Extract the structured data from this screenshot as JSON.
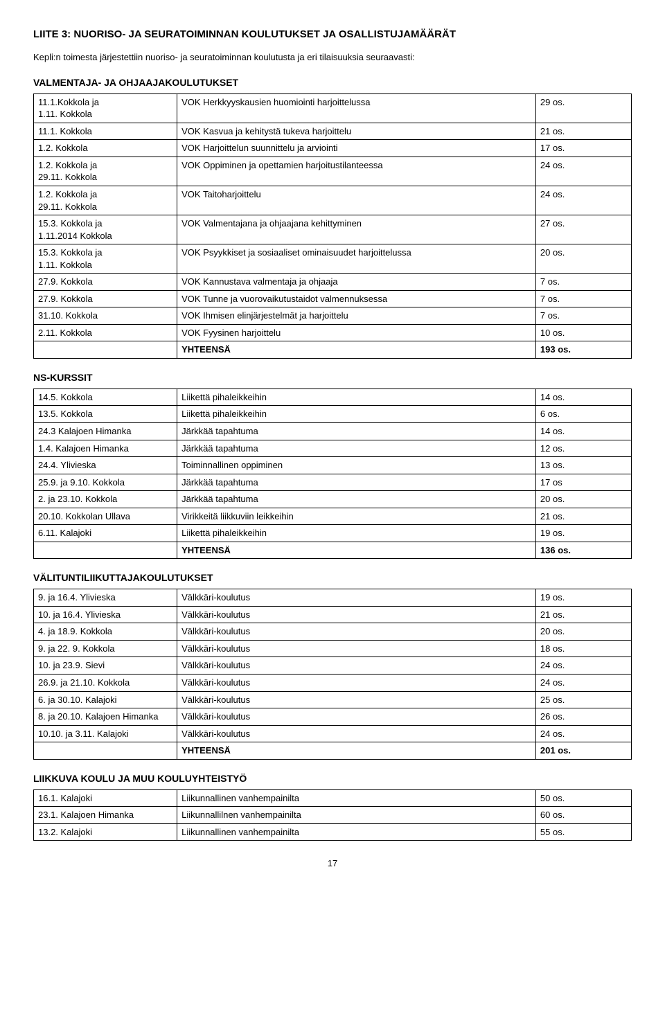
{
  "title": "LIITE 3: NUORISO- JA SEURATOIMINNAN KOULUTUKSET JA OSALLISTUJAMÄÄRÄT",
  "intro": "Kepli:n toimesta järjestettiin nuoriso- ja seuratoiminnan koulutusta ja eri tilaisuuksia seuraavasti:",
  "sections": [
    {
      "heading": "VALMENTAJA- JA OHJAAJAKOULUTUKSET",
      "rows": [
        {
          "a": "11.1.Kokkola ja\n1.11. Kokkola",
          "b": "VOK Herkkyyskausien huomiointi harjoittelussa",
          "c": "29 os."
        },
        {
          "a": "11.1. Kokkola",
          "b": "VOK Kasvua ja kehitystä tukeva harjoittelu",
          "c": "21 os."
        },
        {
          "a": "1.2. Kokkola",
          "b": "VOK Harjoittelun suunnittelu ja arviointi",
          "c": "17 os."
        },
        {
          "a": "1.2. Kokkola ja\n29.11. Kokkola",
          "b": "VOK Oppiminen ja opettamien harjoitustilanteessa",
          "c": "24 os."
        },
        {
          "a": "1.2. Kokkola ja\n29.11. Kokkola",
          "b": "VOK Taitoharjoittelu",
          "c": "24 os."
        },
        {
          "a": "15.3. Kokkola ja\n1.11.2014 Kokkola",
          "b": "VOK Valmentajana ja ohjaajana kehittyminen",
          "c": "27 os."
        },
        {
          "a": "15.3. Kokkola ja\n1.11. Kokkola",
          "b": "VOK Psyykkiset ja sosiaaliset ominaisuudet harjoittelussa",
          "c": "20 os."
        },
        {
          "a": "27.9. Kokkola",
          "b": "VOK Kannustava valmentaja ja ohjaaja",
          "c": "7 os."
        },
        {
          "a": "27.9. Kokkola",
          "b": "VOK Tunne ja vuorovaikutustaidot valmennuksessa",
          "c": "7 os."
        },
        {
          "a": "31.10. Kokkola",
          "b": "VOK Ihmisen elinjärjestelmät ja harjoittelu",
          "c": "7 os."
        },
        {
          "a": "2.11. Kokkola",
          "b": "VOK Fyysinen harjoittelu",
          "c": "10 os."
        }
      ],
      "total": {
        "label": "YHTEENSÄ",
        "value": "193 os."
      }
    },
    {
      "heading": "NS-KURSSIT",
      "rows": [
        {
          "a": "14.5. Kokkola",
          "b": "Liikettä pihaleikkeihin",
          "c": "14 os."
        },
        {
          "a": "13.5. Kokkola",
          "b": "Liikettä pihaleikkeihin",
          "c": "6 os."
        },
        {
          "a": "24.3 Kalajoen Himanka",
          "b": "Järkkää tapahtuma",
          "c": "14 os."
        },
        {
          "a": "1.4. Kalajoen Himanka",
          "b": "Järkkää tapahtuma",
          "c": "12 os."
        },
        {
          "a": "24.4. Ylivieska",
          "b": "Toiminnallinen oppiminen",
          "c": "13 os."
        },
        {
          "a": "25.9. ja 9.10. Kokkola",
          "b": "Järkkää tapahtuma",
          "c": "17 os"
        },
        {
          "a": "2. ja 23.10. Kokkola",
          "b": "Järkkää tapahtuma",
          "c": "20 os."
        },
        {
          "a": "20.10. Kokkolan Ullava",
          "b": "Virikkeitä liikkuviin leikkeihin",
          "c": "21 os."
        },
        {
          "a": "6.11. Kalajoki",
          "b": "Liikettä pihaleikkeihin",
          "c": "19 os."
        }
      ],
      "total": {
        "label": "YHTEENSÄ",
        "value": "136 os."
      }
    },
    {
      "heading": "VÄLITUNTILIIKUTTAJAKOULUTUKSET",
      "rows": [
        {
          "a": "9. ja 16.4. Ylivieska",
          "b": "Välkkäri-koulutus",
          "c": "19 os."
        },
        {
          "a": "10. ja 16.4. Ylivieska",
          "b": "Välkkäri-koulutus",
          "c": "21 os."
        },
        {
          "a": "4. ja 18.9. Kokkola",
          "b": "Välkkäri-koulutus",
          "c": "20 os."
        },
        {
          "a": "9. ja 22. 9. Kokkola",
          "b": "Välkkäri-koulutus",
          "c": "18 os."
        },
        {
          "a": "10. ja 23.9. Sievi",
          "b": "Välkkäri-koulutus",
          "c": "24 os."
        },
        {
          "a": "26.9. ja 21.10. Kokkola",
          "b": "Välkkäri-koulutus",
          "c": "24 os."
        },
        {
          "a": "6. ja 30.10. Kalajoki",
          "b": "Välkkäri-koulutus",
          "c": "25 os."
        },
        {
          "a": "8. ja 20.10. Kalajoen Himanka",
          "b": "Välkkäri-koulutus",
          "c": "26 os."
        },
        {
          "a": "10.10. ja 3.11. Kalajoki",
          "b": "Välkkäri-koulutus",
          "c": "24 os."
        }
      ],
      "total": {
        "label": "YHTEENSÄ",
        "value": "201 os."
      }
    },
    {
      "heading": "LIIKKUVA KOULU JA MUU KOULUYHTEISTYÖ",
      "rows": [
        {
          "a": "16.1. Kalajoki",
          "b": "Liikunnallinen vanhempainilta",
          "c": "50 os."
        },
        {
          "a": "23.1. Kalajoen Himanka",
          "b": "Liikunnallilnen vanhempainilta",
          "c": "60 os."
        },
        {
          "a": "13.2. Kalajoki",
          "b": "Liikunnallinen vanhempainilta",
          "c": "55 os."
        }
      ]
    }
  ],
  "pageNumber": "17"
}
